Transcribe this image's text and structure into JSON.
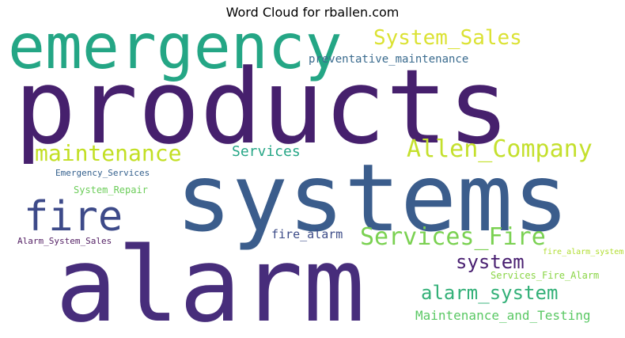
{
  "title": "Word Cloud for rballen.com",
  "words": {
    "products": {
      "text": "products",
      "color": "#46206d"
    },
    "systems": {
      "text": "systems",
      "color": "#3b5d8c"
    },
    "alarm": {
      "text": "alarm",
      "color": "#472d7b"
    },
    "emergency": {
      "text": "emergency",
      "color": "#24a685"
    },
    "system_sales": {
      "text": "System_Sales",
      "color": "#dbe233"
    },
    "preventative_maintenance": {
      "text": "preventative_maintenance",
      "color": "#3a6b8e"
    },
    "maintenance": {
      "text": "maintenance",
      "color": "#c2df23"
    },
    "services": {
      "text": "Services",
      "color": "#26a686"
    },
    "allen_company": {
      "text": "Allen_Company",
      "color": "#c4e02d"
    },
    "emergency_services": {
      "text": "Emergency_Services",
      "color": "#34608d"
    },
    "system_repair": {
      "text": "System_Repair",
      "color": "#6ccd5a"
    },
    "fire": {
      "text": "fire",
      "color": "#3d4a89"
    },
    "alarm_system_sales": {
      "text": "Alarm_System_Sales",
      "color": "#521e63"
    },
    "fire_alarm": {
      "text": "fire_alarm",
      "color": "#3d4c88"
    },
    "services_fire": {
      "text": "Services_Fire",
      "color": "#7ad151"
    },
    "fire_alarm_system": {
      "text": "fire_alarm_system",
      "color": "#b0dd2f"
    },
    "system": {
      "text": "system",
      "color": "#481e70"
    },
    "services_fire_alarm": {
      "text": "Services_Fire_Alarm",
      "color": "#8ad546"
    },
    "alarm_system": {
      "text": "alarm_system",
      "color": "#33b078"
    },
    "maintenance_and_testing": {
      "text": "Maintenance_and_Testing",
      "color": "#5ac864"
    }
  }
}
